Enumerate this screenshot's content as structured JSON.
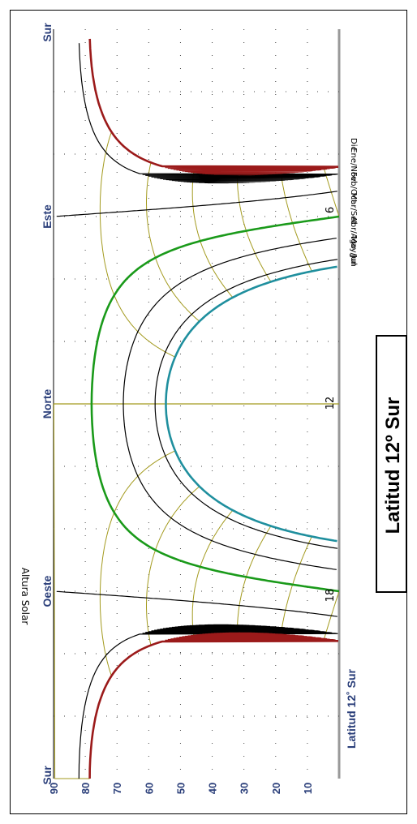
{
  "chart_data": {
    "type": "line",
    "title": "Latitud 12º Sur",
    "subtitle": "Latitud 12˚ Sur",
    "ylabel": "Altura Solar",
    "ylim": [
      0,
      90
    ],
    "y_ticks": [
      "90",
      "80",
      "70",
      "60",
      "50",
      "40",
      "30",
      "20",
      "10"
    ],
    "x_ticks": [
      "Sur",
      "Oeste",
      "Norte",
      "Este",
      "Sur"
    ],
    "hour_labels": [
      "18",
      "12",
      "6"
    ],
    "series": [
      {
        "name": "Jun",
        "color": "#1f8f9e",
        "max_altitude": 55
      },
      {
        "name": "May/Jul",
        "color": "#000000",
        "max_altitude": 59
      },
      {
        "name": "Abr/Ago",
        "color": "#000000",
        "max_altitude": 68
      },
      {
        "name": "Mar/Set",
        "color": "#1a9a1a",
        "max_altitude": 78
      },
      {
        "name": "Feb/Oct",
        "color": "#000000",
        "max_altitude": 89
      },
      {
        "name": "Ene/Nov",
        "color": "#000000",
        "max_altitude": 80
      },
      {
        "name": "Dic",
        "color": "#9b1a1a",
        "max_altitude": 79
      }
    ],
    "grid": true
  }
}
